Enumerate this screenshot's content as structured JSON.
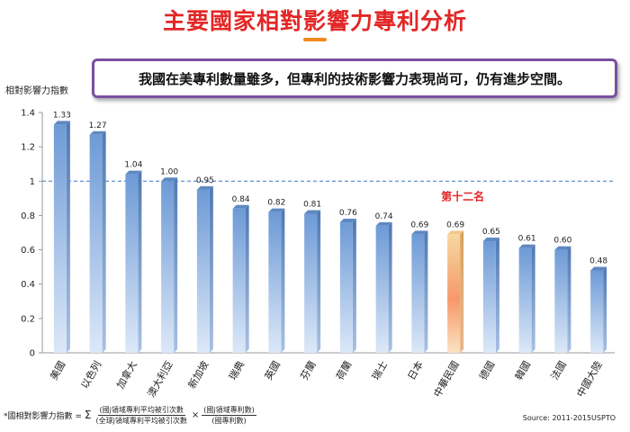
{
  "title": "主要國家相對影響力專利分析",
  "callout": "我國在美專利數量雖多，但專利的技術影響力表現尚可，仍有進步空間。",
  "source": "Source: 2011-2015USPTO",
  "formula": {
    "label": "*國相對影響力指數 =",
    "sigma": "Σ",
    "frac1_num": "(國j領域專利平均被引次數",
    "frac1_den": "(全球j領域專利平均被引次數",
    "times": "×",
    "frac2_num": "(國j領域專利數)",
    "frac2_den": "(國專利數)"
  },
  "colors": {
    "title": "#e32626",
    "callout_border": "#7a4fa0",
    "bar_blue": "#7aa6dd",
    "bar_highlight": "#f5a06a",
    "highlight_label": "#e32626",
    "reference_line": "#3a74c4"
  },
  "chart_data": {
    "type": "bar",
    "ylabel": "相對影響力指數",
    "ylim": [
      0,
      1.4
    ],
    "yticks": [
      "0",
      "0.2",
      "0.4",
      "0.6",
      "0.8",
      "1",
      "1.2",
      "1.4"
    ],
    "grid": false,
    "reference_line": 1,
    "categories": [
      "美國",
      "以色列",
      "加拿大",
      "澳大利亞",
      "新加坡",
      "瑞典",
      "英國",
      "芬蘭",
      "荷蘭",
      "瑞士",
      "日本",
      "中華民國",
      "德國",
      "韓國",
      "法國",
      "中國大陸"
    ],
    "values": [
      1.33,
      1.27,
      1.04,
      1.0,
      0.95,
      0.84,
      0.82,
      0.81,
      0.76,
      0.74,
      0.69,
      0.69,
      0.65,
      0.61,
      0.6,
      0.48
    ],
    "value_labels": [
      "1.33",
      "1.27",
      "1.04",
      "1.00",
      "0.95",
      "0.84",
      "0.82",
      "0.81",
      "0.76",
      "0.74",
      "0.69",
      "0.69",
      "0.65",
      "0.61",
      "0.60",
      "0.48"
    ],
    "highlight_index": 11,
    "highlight_label": "第十二名"
  }
}
